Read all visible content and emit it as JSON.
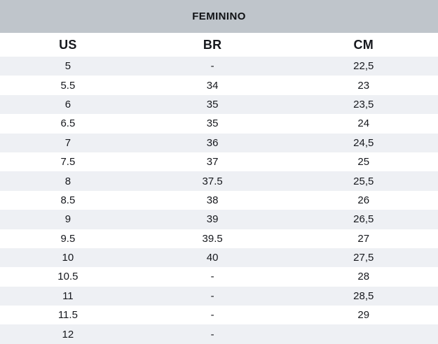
{
  "chart_data": {
    "type": "table",
    "title": "FEMININO",
    "columns": [
      "US",
      "BR",
      "CM"
    ],
    "rows": [
      [
        "5",
        "-",
        "22,5"
      ],
      [
        "5.5",
        "34",
        "23"
      ],
      [
        "6",
        "35",
        "23,5"
      ],
      [
        "6.5",
        "35",
        "24"
      ],
      [
        "7",
        "36",
        "24,5"
      ],
      [
        "7.5",
        "37",
        "25"
      ],
      [
        "8",
        "37.5",
        "25,5"
      ],
      [
        "8.5",
        "38",
        "26"
      ],
      [
        "9",
        "39",
        "26,5"
      ],
      [
        "9.5",
        "39.5",
        "27"
      ],
      [
        "10",
        "40",
        "27,5"
      ],
      [
        "10.5",
        "-",
        "28"
      ],
      [
        "11",
        "-",
        "28,5"
      ],
      [
        "11.5",
        "-",
        "29"
      ],
      [
        "12",
        "-",
        ""
      ]
    ],
    "layout": {
      "striped": true,
      "first_data_row_striped": true,
      "column_alignment": "center"
    }
  },
  "colors": {
    "title_bar_bg": "#bfc5cb",
    "stripe_bg": "#eef0f4",
    "row_bg": "#ffffff",
    "text": "#16181d"
  }
}
